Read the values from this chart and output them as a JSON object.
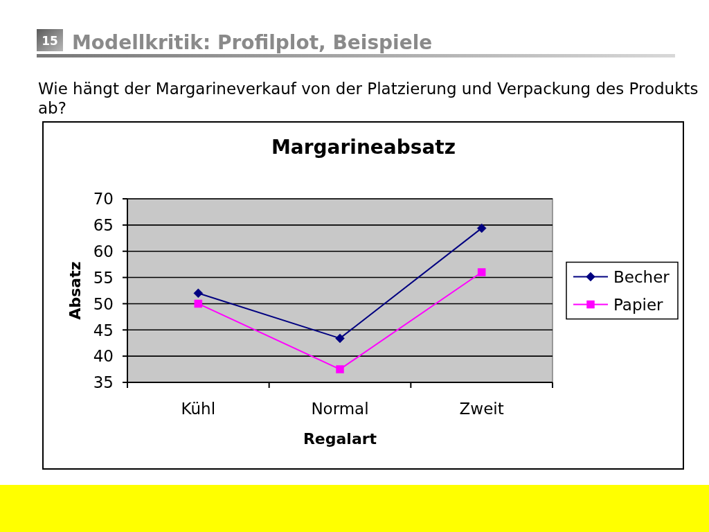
{
  "chart_data": {
    "type": "line",
    "title": "Margarineabsatz",
    "subtitle": "Wie hängt der Margarineverkauf von der Platzierung und Verpackung des Produkts ab?",
    "annotations": [
      "15",
      "Modellkritik: Profilplot, Beispiele"
    ],
    "xlabel": "Regalart",
    "ylabel": "Absatz",
    "categories": [
      "Kühl",
      "Normal",
      "Zweit"
    ],
    "series": [
      {
        "name": "Becher",
        "color": "#000080",
        "marker": "diamond",
        "values": [
          52,
          43.4,
          64.4
        ]
      },
      {
        "name": "Papier",
        "color": "#ff00ff",
        "marker": "square",
        "values": [
          50,
          37.5,
          56
        ]
      }
    ],
    "ylim": [
      35,
      70
    ],
    "yticks": [
      35,
      40,
      45,
      50,
      55,
      60,
      65,
      70
    ],
    "grid": "y",
    "legend": "right",
    "line_style": "solid"
  }
}
